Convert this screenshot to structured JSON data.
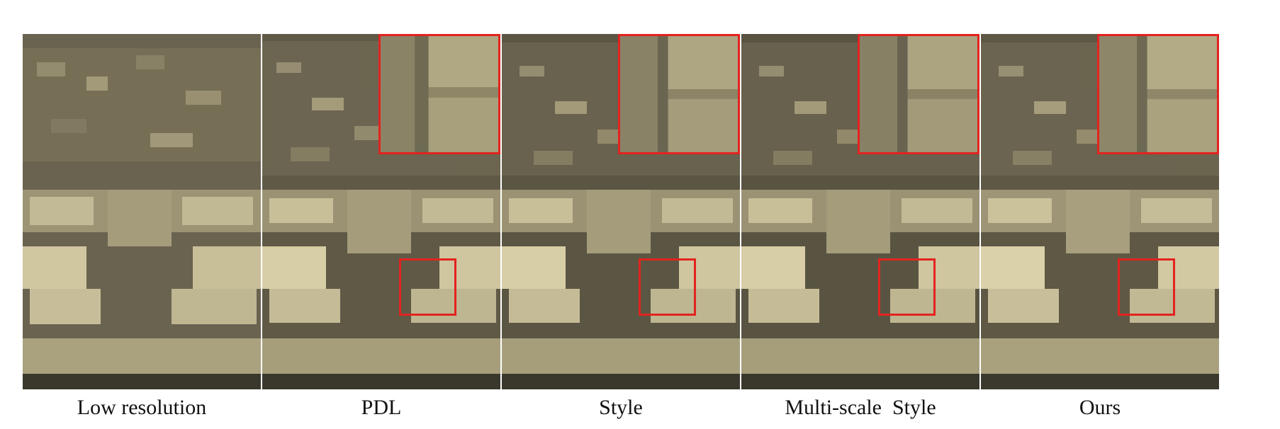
{
  "figure": {
    "panels": [
      {
        "id": "low-resolution",
        "caption": "Low resolution",
        "has_zoom": false
      },
      {
        "id": "pdl",
        "caption": "PDL",
        "has_zoom": true
      },
      {
        "id": "style",
        "caption": "Style",
        "has_zoom": true
      },
      {
        "id": "multiscale-style",
        "caption": "Multi-scale  Style",
        "has_zoom": true
      },
      {
        "id": "ours",
        "caption": "Ours",
        "has_zoom": true
      }
    ],
    "colors": {
      "zoom_border": "#e3231f",
      "stone_light": "#d8cda5",
      "stone_mid": "#8e8668",
      "stone_dark": "#3f3c30"
    }
  }
}
